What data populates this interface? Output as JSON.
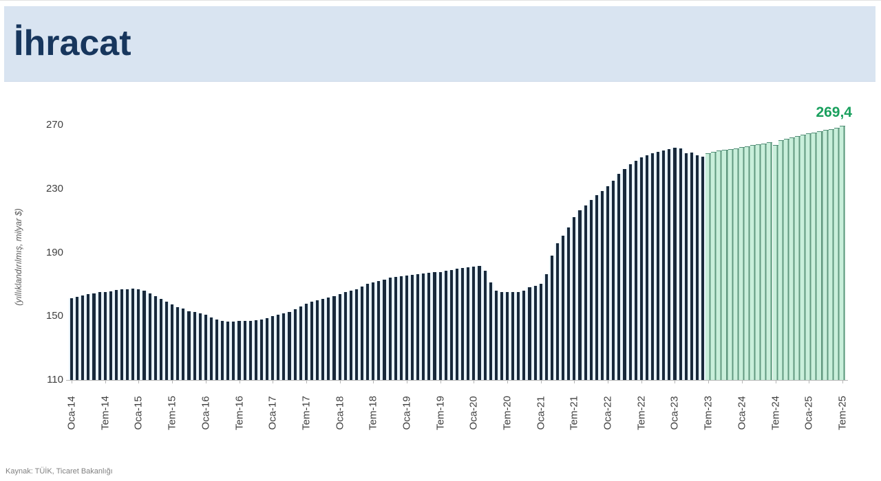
{
  "header": {
    "title": "İhracat"
  },
  "footer": {
    "source": "Kaynak: TÜİK, Ticaret Bakanlığı"
  },
  "chart_data": {
    "type": "bar",
    "title": "İhracat",
    "ylabel": "(yıllıklandırılmış, milyar $)",
    "xlabel": "",
    "unit": "milyar $",
    "frequency": "monthly",
    "start_month": "Oca-14",
    "end_month": "Tem-25",
    "ylim": [
      110,
      280
    ],
    "y_ticks": [
      110,
      150,
      190,
      230,
      270
    ],
    "grid": false,
    "legend": "none",
    "x_tick_labels": [
      "Oca-14",
      "Tem-14",
      "Oca-15",
      "Tem-15",
      "Oca-16",
      "Tem-16",
      "Oca-17",
      "Tem-17",
      "Oca-18",
      "Tem-18",
      "Oca-19",
      "Tem-19",
      "Oca-20",
      "Tem-20",
      "Oca-21",
      "Tem-21",
      "Oca-22",
      "Tem-22",
      "Oca-23",
      "Tem-23",
      "Oca-24",
      "Tem-24",
      "Oca-25",
      "Tem-25"
    ],
    "x_tick_every_n_bars": 6,
    "values": [
      161.3,
      162.2,
      163.0,
      163.8,
      164.5,
      165.0,
      165.4,
      165.8,
      166.3,
      166.8,
      167.0,
      167.2,
      167.0,
      166.0,
      164.5,
      162.6,
      161.0,
      159.2,
      157.4,
      155.7,
      154.8,
      153.1,
      152.7,
      151.8,
      151.0,
      149.4,
      148.0,
      147.2,
      146.6,
      146.5,
      147.0,
      147.3,
      147.0,
      147.4,
      148.0,
      148.8,
      150.0,
      151.0,
      151.8,
      152.6,
      154.5,
      156.0,
      158.0,
      159.2,
      160.0,
      160.8,
      161.6,
      162.8,
      164.0,
      165.0,
      166.0,
      167.0,
      168.5,
      170.3,
      171.2,
      172.0,
      173.1,
      174.1,
      174.8,
      175.2,
      175.5,
      176.0,
      176.4,
      176.9,
      177.2,
      177.5,
      177.7,
      178.4,
      179.1,
      179.8,
      180.2,
      180.6,
      181.0,
      181.6,
      178.4,
      171.2,
      166.2,
      165.4,
      165.2,
      165.4,
      165.1,
      166.2,
      168.4,
      169.1,
      170.5,
      176.3,
      188.0,
      196.0,
      200.7,
      205.7,
      212.2,
      216.5,
      219.4,
      223.0,
      225.9,
      228.7,
      231.6,
      235.2,
      239.5,
      242.4,
      245.3,
      247.4,
      249.6,
      251.0,
      252.4,
      253.2,
      253.9,
      255.0,
      255.8,
      255.3,
      252.5,
      252.9,
      251.0,
      250.3,
      252.4,
      253.1,
      253.9,
      254.4,
      254.9,
      255.3,
      256.0,
      256.7,
      257.4,
      258.0,
      258.3,
      259.3,
      257.5,
      260.3,
      261.2,
      262.2,
      263.0,
      263.9,
      264.7,
      265.4,
      266.1,
      266.8,
      267.5,
      268.2,
      269.4
    ],
    "green_start_index": 114,
    "green_start_month": "Tem-23",
    "annotation": {
      "text": "269,4",
      "value": 269.4,
      "month": "Tem-25"
    },
    "colors": {
      "bar_navy": "#18293b",
      "bar_navy_gap": "#e9f3fa",
      "bar_green_fill": "#c9efdb",
      "bar_green_edge": "#61987f",
      "annotation_green": "#1aa05e",
      "title_navy": "#17365d",
      "header_background": "#d9e4f1",
      "axis_text": "#404040"
    }
  }
}
